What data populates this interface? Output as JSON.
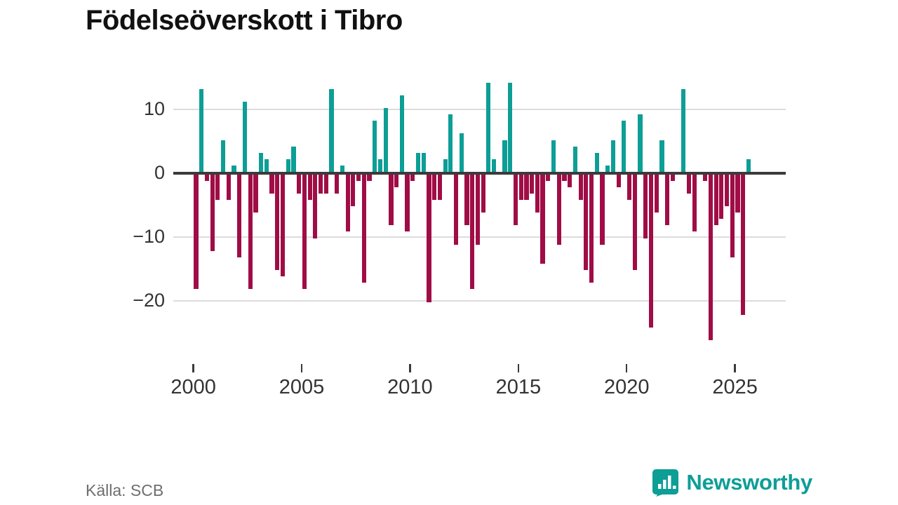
{
  "title": "Födelseöverskott i Tibro",
  "source": "Källa: SCB",
  "brand": {
    "name": "Newsworthy",
    "color": "#0d9e96",
    "icon": "bar-chart-bubble-icon"
  },
  "chart_data": {
    "type": "bar",
    "title": "Födelseöverskott i Tibro",
    "frequency": "quarterly",
    "start_year": 2000,
    "start_quarter": 1,
    "end_year": 2025,
    "end_quarter": 3,
    "values": [
      -18,
      13,
      -1,
      -12,
      -4,
      5,
      -4,
      1,
      -13,
      11,
      -18,
      -6,
      3,
      2,
      -3,
      -15,
      -16,
      2,
      4,
      -3,
      -18,
      -4,
      -10,
      -3,
      -3,
      13,
      -3,
      1,
      -9,
      -5,
      -1,
      -17,
      -1,
      8,
      2,
      10,
      -8,
      -2,
      12,
      -9,
      -1,
      3,
      3,
      -20,
      -4,
      -4,
      2,
      9,
      -11,
      6,
      -8,
      -18,
      -11,
      -6,
      14,
      2,
      0,
      5,
      14,
      -8,
      -4,
      -4,
      -3,
      -6,
      -14,
      -1,
      5,
      -11,
      -1,
      -2,
      4,
      -4,
      -15,
      -17,
      3,
      -11,
      1,
      5,
      -2,
      8,
      -4,
      -15,
      9,
      -10,
      -24,
      -6,
      5,
      -8,
      -1,
      0,
      13,
      -3,
      -9,
      0,
      -1,
      -26,
      -8,
      -7,
      -5,
      -13,
      -6,
      -22,
      2
    ],
    "positive_color": "#0d9e96",
    "negative_color": "#a00d46",
    "y_tick_values": [
      10,
      0,
      -10,
      -20
    ],
    "y_tick_labels": [
      "10",
      "0",
      "−10",
      "−20"
    ],
    "x_tick_years": [
      2000,
      2005,
      2010,
      2015,
      2020,
      2025
    ],
    "x_tick_labels": [
      "2000",
      "2005",
      "2010",
      "2015",
      "2020",
      "2025"
    ],
    "ylim": [
      -27,
      15
    ],
    "grid": true,
    "legend": "none",
    "source": "Källa: SCB"
  }
}
